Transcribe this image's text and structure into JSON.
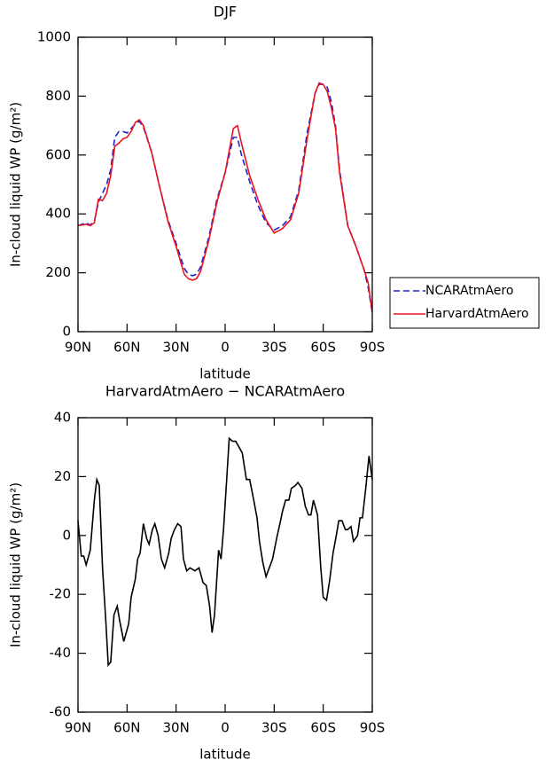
{
  "chart_data": [
    {
      "type": "line",
      "title": "DJF",
      "xlabel": "latitude",
      "ylabel": "In-cloud liquid WP (g/m²)",
      "x": [
        90,
        85,
        82.5,
        80,
        77.5,
        75,
        72.5,
        70,
        67.5,
        65,
        62.5,
        60,
        57.5,
        55,
        52.5,
        50,
        45,
        40,
        35,
        30,
        25,
        22.5,
        20,
        17.5,
        15,
        10,
        5,
        0,
        -5,
        -7.5,
        -10,
        -15,
        -20,
        -25,
        -30,
        -35,
        -40,
        -45,
        -50,
        -55,
        -57.5,
        -60,
        -62.5,
        -65,
        -67.5,
        -70,
        -75,
        -80,
        -85,
        -87.5,
        -90
      ],
      "series": [
        {
          "name": "NCARAtmAero",
          "color": "#1f1fd6",
          "linestyle": "dashed",
          "values": [
            360,
            370,
            362,
            375,
            440,
            470,
            500,
            550,
            660,
            680,
            680,
            675,
            690,
            705,
            715,
            695,
            610,
            490,
            380,
            300,
            215,
            195,
            190,
            195,
            220,
            320,
            450,
            540,
            660,
            660,
            600,
            510,
            430,
            370,
            345,
            360,
            390,
            480,
            670,
            810,
            840,
            840,
            830,
            780,
            700,
            550,
            360,
            290,
            210,
            150,
            65
          ]
        },
        {
          "name": "HarvardAtmAero",
          "color": "#e8141c",
          "linestyle": "solid",
          "values": [
            360,
            365,
            360,
            370,
            450,
            445,
            470,
            530,
            630,
            640,
            655,
            660,
            680,
            710,
            720,
            700,
            610,
            490,
            375,
            290,
            195,
            180,
            175,
            180,
            205,
            310,
            440,
            540,
            690,
            700,
            640,
            530,
            450,
            380,
            335,
            350,
            380,
            470,
            650,
            810,
            845,
            840,
            815,
            760,
            690,
            540,
            360,
            290,
            210,
            165,
            65
          ]
        }
      ],
      "xlim": [
        90,
        -90
      ],
      "xticks": [
        {
          "value": 90,
          "label": "90N"
        },
        {
          "value": 60,
          "label": "60N"
        },
        {
          "value": 30,
          "label": "30N"
        },
        0,
        {
          "value": -30,
          "label": "30S"
        },
        {
          "value": -60,
          "label": "60S"
        },
        {
          "value": -90,
          "label": "90S"
        }
      ],
      "ylim": [
        0,
        1000
      ],
      "yticks": [
        0,
        200,
        400,
        600,
        800,
        1000
      ],
      "grid": false,
      "legend": "right"
    },
    {
      "type": "line",
      "title": "HarvardAtmAero − NCARAtmAero",
      "xlabel": "latitude",
      "ylabel": "In-cloud liquid WP (g/m²)",
      "x": [
        90,
        88,
        86.5,
        85,
        82.5,
        80,
        78.5,
        77,
        75,
        73,
        71.5,
        70,
        68,
        66,
        64.5,
        62,
        59,
        57.5,
        55,
        53.5,
        52,
        50,
        48,
        46.5,
        44.5,
        43,
        41,
        39,
        37,
        34.5,
        33,
        31,
        29,
        27,
        25.5,
        23.5,
        21.5,
        18.5,
        16,
        13.5,
        11.5,
        9.5,
        8,
        6.5,
        4,
        2.5,
        1,
        -0.5,
        -2.5,
        -4.5,
        -6.5,
        -8.5,
        -10.5,
        -13,
        -15,
        -17.5,
        -19.5,
        -21,
        -23,
        -25,
        -27,
        -29,
        -31.5,
        -33.5,
        -35,
        -37,
        -39,
        -40.5,
        -43,
        -44.5,
        -47,
        -49,
        -51,
        -52.5,
        -54,
        -56.5,
        -58.5,
        -60,
        -62,
        -64,
        -66,
        -68,
        -69.5,
        -71.5,
        -73.5,
        -75,
        -77,
        -78.5,
        -81,
        -82.5,
        -84,
        -86,
        -88,
        -90
      ],
      "series": [
        {
          "color": "#000000",
          "linestyle": "solid",
          "values": [
            5,
            -7,
            -7,
            -10,
            -5,
            12,
            19,
            17,
            -11,
            -29,
            -44,
            -43,
            -27,
            -24,
            -29,
            -36,
            -30,
            -21,
            -15,
            -8,
            -6,
            4,
            -1,
            -3,
            2,
            4,
            0,
            -8,
            -11,
            -6,
            -1,
            2,
            4,
            3,
            -8,
            -12,
            -11,
            -12,
            -11,
            -16,
            -17,
            -24,
            -33,
            -27,
            -5,
            -8,
            2,
            15,
            33,
            32,
            32,
            30,
            28,
            19,
            19,
            12,
            6,
            -2,
            -9,
            -14,
            -11,
            -8,
            -1,
            4,
            8,
            12,
            12,
            16,
            17,
            18,
            16,
            10,
            7,
            7,
            12,
            7,
            -11,
            -21,
            -22,
            -15,
            -6,
            0,
            5,
            5,
            2,
            2,
            3,
            -2,
            0,
            6,
            6,
            16,
            27,
            19
          ]
        }
      ],
      "xlim": [
        90,
        -90
      ],
      "xticks": [
        {
          "value": 90,
          "label": "90N"
        },
        {
          "value": 60,
          "label": "60N"
        },
        {
          "value": 30,
          "label": "30N"
        },
        0,
        {
          "value": -30,
          "label": "30S"
        },
        {
          "value": -60,
          "label": "60S"
        },
        {
          "value": -90,
          "label": "90S"
        }
      ],
      "ylim": [
        -60,
        40
      ],
      "yticks": [
        -60,
        -40,
        -20,
        0,
        20,
        40
      ],
      "grid": false
    }
  ]
}
